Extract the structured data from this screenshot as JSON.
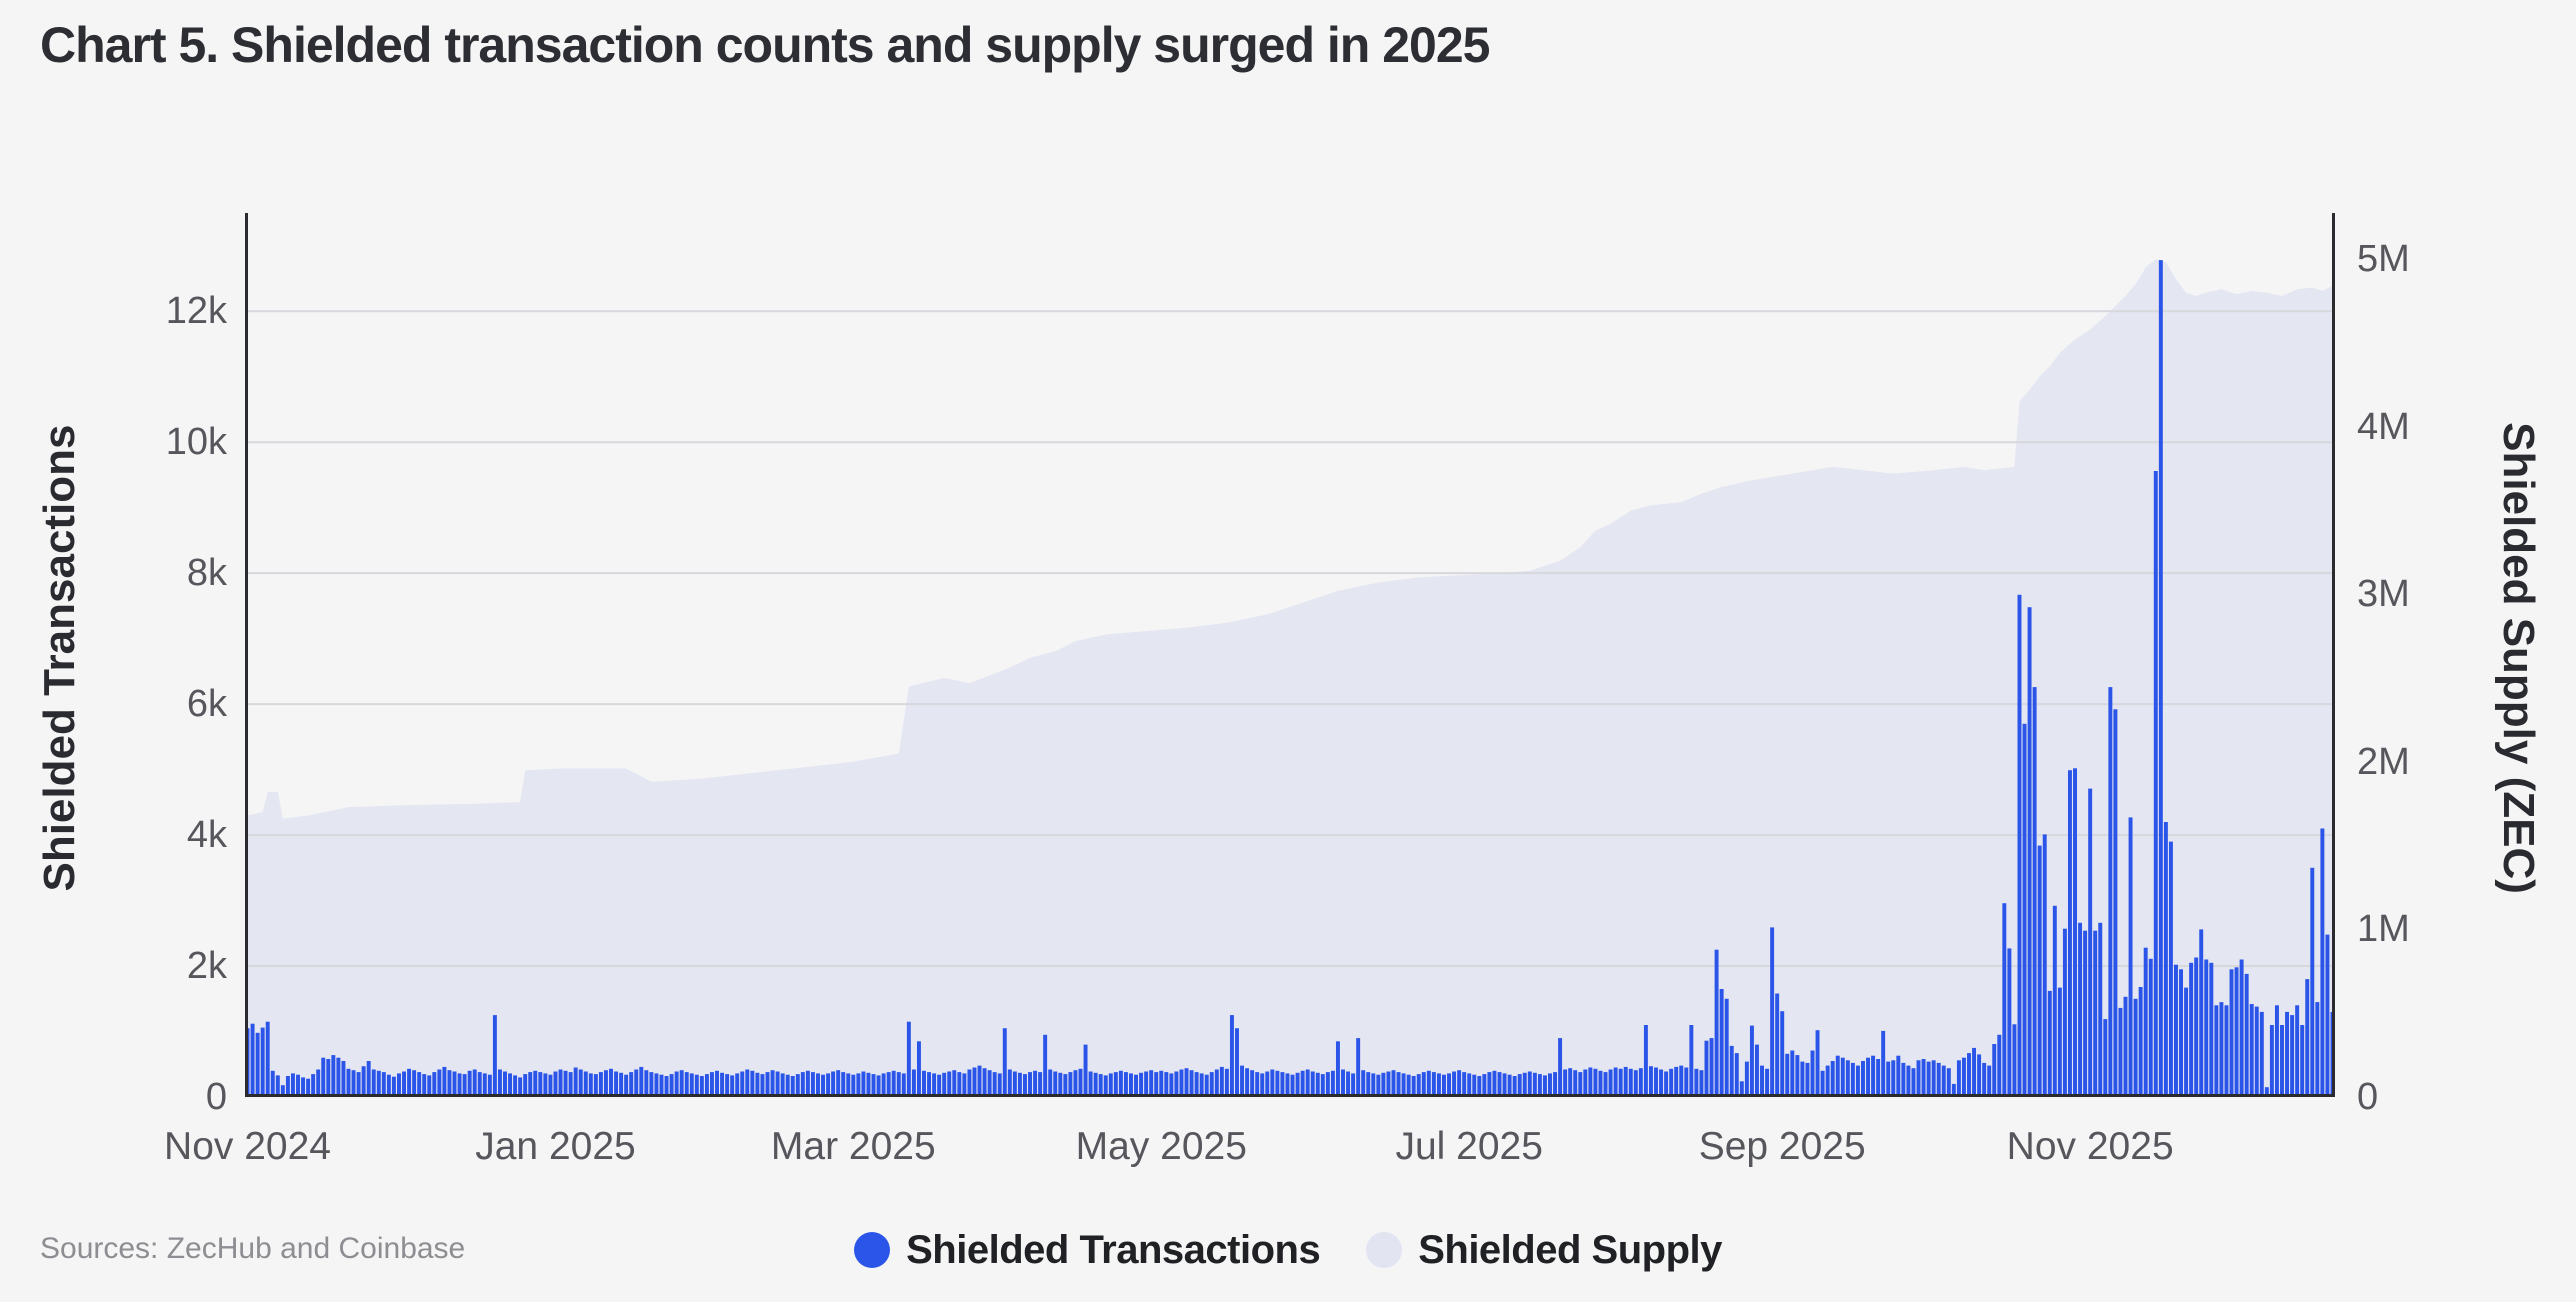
{
  "title": "Chart 5. Shielded transaction counts and supply surged in 2025",
  "source_note": "Sources: ZecHub and Coinbase",
  "colors": {
    "background": "#f5f5f6",
    "bar_blue": "#2b55e8",
    "area_lavender": "#e4e6f2",
    "grid": "#d7d7dc",
    "axis_line": "#2a2a2f",
    "tick_text": "#56565c",
    "title_text": "#2d2e33",
    "legend_text": "#202125",
    "source_text": "#8d8d92"
  },
  "legend": {
    "items": [
      {
        "label": "Shielded Transactions",
        "color": "#2b55e8"
      },
      {
        "label": "Shielded Supply",
        "color": "#e2e4f2"
      }
    ]
  },
  "chart_data": {
    "type": "combo",
    "description": "Daily shielded transaction counts (blue bars, left axis) and shielded ZEC supply (lavender area, right axis) from Nov 2024 through mid-Dec 2025",
    "x": {
      "total_days": 414,
      "start": "Nov 1 2024",
      "end": "Dec 19 2025",
      "ticks": [
        {
          "label": "Nov 2024",
          "day": 0
        },
        {
          "label": "Jan 2025",
          "day": 61
        },
        {
          "label": "Mar 2025",
          "day": 120
        },
        {
          "label": "May 2025",
          "day": 181
        },
        {
          "label": "Jul 2025",
          "day": 242
        },
        {
          "label": "Sep 2025",
          "day": 304
        },
        {
          "label": "Nov 2025",
          "day": 365
        }
      ]
    },
    "left_axis": {
      "label": "Shielded Transactions",
      "max": 13500,
      "ticks": [
        {
          "label": "0",
          "value": 0
        },
        {
          "label": "2k",
          "value": 2000
        },
        {
          "label": "4k",
          "value": 4000
        },
        {
          "label": "6k",
          "value": 6000
        },
        {
          "label": "8k",
          "value": 8000
        },
        {
          "label": "10k",
          "value": 10000
        },
        {
          "label": "12k",
          "value": 12000
        }
      ]
    },
    "right_axis": {
      "label": "Shielded Supply (ZEC)",
      "max": 5.275,
      "unit": "millions of ZEC",
      "ticks": [
        {
          "label": "0",
          "value": 0
        },
        {
          "label": "1M",
          "value": 1
        },
        {
          "label": "2M",
          "value": 2
        },
        {
          "label": "3M",
          "value": 3
        },
        {
          "label": "4M",
          "value": 4
        },
        {
          "label": "5M",
          "value": 5
        }
      ]
    },
    "series": [
      {
        "name": "Shielded Transactions",
        "type": "bar",
        "axis": "left",
        "color": "#2b55e8",
        "values": [
          1050,
          1120,
          980,
          1060,
          1150,
          400,
          330,
          180,
          320,
          360,
          340,
          300,
          280,
          350,
          420,
          600,
          580,
          640,
          600,
          550,
          430,
          410,
          380,
          470,
          550,
          420,
          400,
          380,
          340,
          310,
          360,
          390,
          430,
          410,
          380,
          350,
          330,
          380,
          420,
          460,
          410,
          390,
          360,
          350,
          400,
          420,
          380,
          360,
          340,
          1250,
          420,
          390,
          360,
          330,
          300,
          350,
          380,
          400,
          380,
          360,
          340,
          390,
          420,
          400,
          380,
          450,
          420,
          390,
          360,
          350,
          380,
          410,
          430,
          390,
          370,
          340,
          380,
          420,
          460,
          410,
          380,
          360,
          340,
          320,
          350,
          390,
          410,
          380,
          360,
          340,
          320,
          350,
          380,
          400,
          370,
          350,
          330,
          360,
          390,
          420,
          400,
          370,
          350,
          380,
          410,
          390,
          360,
          340,
          320,
          350,
          380,
          400,
          380,
          360,
          340,
          360,
          390,
          410,
          380,
          360,
          340,
          360,
          390,
          370,
          350,
          330,
          360,
          380,
          400,
          380,
          360,
          1150,
          420,
          850,
          400,
          380,
          360,
          340,
          370,
          390,
          410,
          380,
          360,
          420,
          450,
          480,
          440,
          410,
          380,
          360,
          1050,
          420,
          390,
          370,
          350,
          380,
          400,
          380,
          950,
          420,
          390,
          370,
          350,
          380,
          410,
          430,
          800,
          390,
          370,
          350,
          330,
          360,
          380,
          400,
          380,
          360,
          340,
          370,
          390,
          410,
          380,
          400,
          380,
          360,
          390,
          420,
          440,
          410,
          380,
          360,
          340,
          380,
          420,
          460,
          430,
          1250,
          1050,
          480,
          440,
          410,
          380,
          360,
          390,
          420,
          400,
          380,
          360,
          340,
          370,
          400,
          420,
          390,
          370,
          350,
          380,
          400,
          850,
          420,
          390,
          360,
          900,
          410,
          380,
          360,
          340,
          370,
          390,
          410,
          380,
          360,
          340,
          320,
          350,
          380,
          400,
          380,
          360,
          340,
          360,
          390,
          410,
          380,
          360,
          340,
          320,
          350,
          380,
          400,
          380,
          360,
          340,
          320,
          350,
          370,
          390,
          370,
          350,
          330,
          360,
          380,
          900,
          420,
          440,
          410,
          380,
          420,
          450,
          430,
          400,
          380,
          420,
          450,
          430,
          460,
          430,
          410,
          440,
          1100,
          470,
          450,
          420,
          390,
          430,
          460,
          480,
          450,
          1100,
          430,
          410,
          860,
          900,
          2250,
          1650,
          1500,
          780,
          670,
          240,
          540,
          1090,
          800,
          480,
          430,
          2590,
          1580,
          1310,
          660,
          710,
          640,
          540,
          520,
          710,
          1020,
          400,
          480,
          550,
          630,
          600,
          560,
          520,
          480,
          550,
          600,
          630,
          580,
          1010,
          540,
          560,
          630,
          520,
          480,
          440,
          560,
          580,
          540,
          560,
          520,
          480,
          440,
          200,
          560,
          600,
          670,
          750,
          650,
          520,
          480,
          810,
          950,
          2960,
          2270,
          1110,
          7670,
          5700,
          7480,
          6260,
          3840,
          4010,
          1620,
          2920,
          1670,
          2570,
          4990,
          5020,
          2660,
          2540,
          4710,
          2540,
          2660,
          1190,
          6260,
          5920,
          1360,
          1530,
          4270,
          1500,
          1680,
          2280,
          2110,
          9560,
          12780,
          4200,
          3900,
          2020,
          1950,
          1670,
          2050,
          2130,
          2560,
          2100,
          2050,
          1400,
          1450,
          1400,
          1950,
          1980,
          2100,
          1880,
          1420,
          1380,
          1300,
          150,
          1100,
          1400,
          1100,
          1300,
          1250,
          1400,
          1100,
          1800,
          3500,
          1450,
          4100,
          2480,
          1300
        ]
      },
      {
        "name": "Shielded Supply",
        "type": "area",
        "axis": "right",
        "color": "#e4e6f2",
        "points_unit": "[day_index, million_ZEC]",
        "points": [
          [
            0,
            1.68
          ],
          [
            3,
            1.7
          ],
          [
            4,
            1.82
          ],
          [
            6,
            1.82
          ],
          [
            7,
            1.66
          ],
          [
            12,
            1.68
          ],
          [
            20,
            1.73
          ],
          [
            30,
            1.74
          ],
          [
            45,
            1.75
          ],
          [
            54,
            1.76
          ],
          [
            55,
            1.95
          ],
          [
            62,
            1.96
          ],
          [
            75,
            1.96
          ],
          [
            80,
            1.88
          ],
          [
            90,
            1.9
          ],
          [
            105,
            1.95
          ],
          [
            120,
            2.0
          ],
          [
            129,
            2.05
          ],
          [
            131,
            2.45
          ],
          [
            138,
            2.5
          ],
          [
            143,
            2.47
          ],
          [
            150,
            2.55
          ],
          [
            155,
            2.62
          ],
          [
            160,
            2.66
          ],
          [
            164,
            2.72
          ],
          [
            170,
            2.76
          ],
          [
            178,
            2.78
          ],
          [
            186,
            2.8
          ],
          [
            194,
            2.83
          ],
          [
            202,
            2.88
          ],
          [
            210,
            2.96
          ],
          [
            216,
            3.02
          ],
          [
            224,
            3.07
          ],
          [
            232,
            3.1
          ],
          [
            244,
            3.12
          ],
          [
            254,
            3.14
          ],
          [
            260,
            3.2
          ],
          [
            264,
            3.28
          ],
          [
            267,
            3.38
          ],
          [
            270,
            3.42
          ],
          [
            274,
            3.5
          ],
          [
            278,
            3.53
          ],
          [
            284,
            3.55
          ],
          [
            288,
            3.6
          ],
          [
            292,
            3.64
          ],
          [
            298,
            3.68
          ],
          [
            306,
            3.72
          ],
          [
            314,
            3.76
          ],
          [
            320,
            3.74
          ],
          [
            326,
            3.72
          ],
          [
            334,
            3.74
          ],
          [
            340,
            3.76
          ],
          [
            344,
            3.74
          ],
          [
            350,
            3.76
          ],
          [
            351,
            4.15
          ],
          [
            353,
            4.22
          ],
          [
            355,
            4.3
          ],
          [
            357,
            4.36
          ],
          [
            359,
            4.44
          ],
          [
            362,
            4.52
          ],
          [
            365,
            4.58
          ],
          [
            368,
            4.66
          ],
          [
            370,
            4.72
          ],
          [
            372,
            4.78
          ],
          [
            374,
            4.85
          ],
          [
            376,
            4.95
          ],
          [
            378,
            5.0
          ],
          [
            380,
            4.98
          ],
          [
            382,
            4.88
          ],
          [
            384,
            4.8
          ],
          [
            386,
            4.78
          ],
          [
            388,
            4.8
          ],
          [
            391,
            4.82
          ],
          [
            394,
            4.79
          ],
          [
            397,
            4.81
          ],
          [
            400,
            4.8
          ],
          [
            403,
            4.78
          ],
          [
            406,
            4.82
          ],
          [
            409,
            4.83
          ],
          [
            411,
            4.81
          ],
          [
            413,
            4.84
          ]
        ]
      }
    ],
    "grid": "horizontal lines at left-axis ticks 2k-12k",
    "legend_position": "bottom center"
  }
}
